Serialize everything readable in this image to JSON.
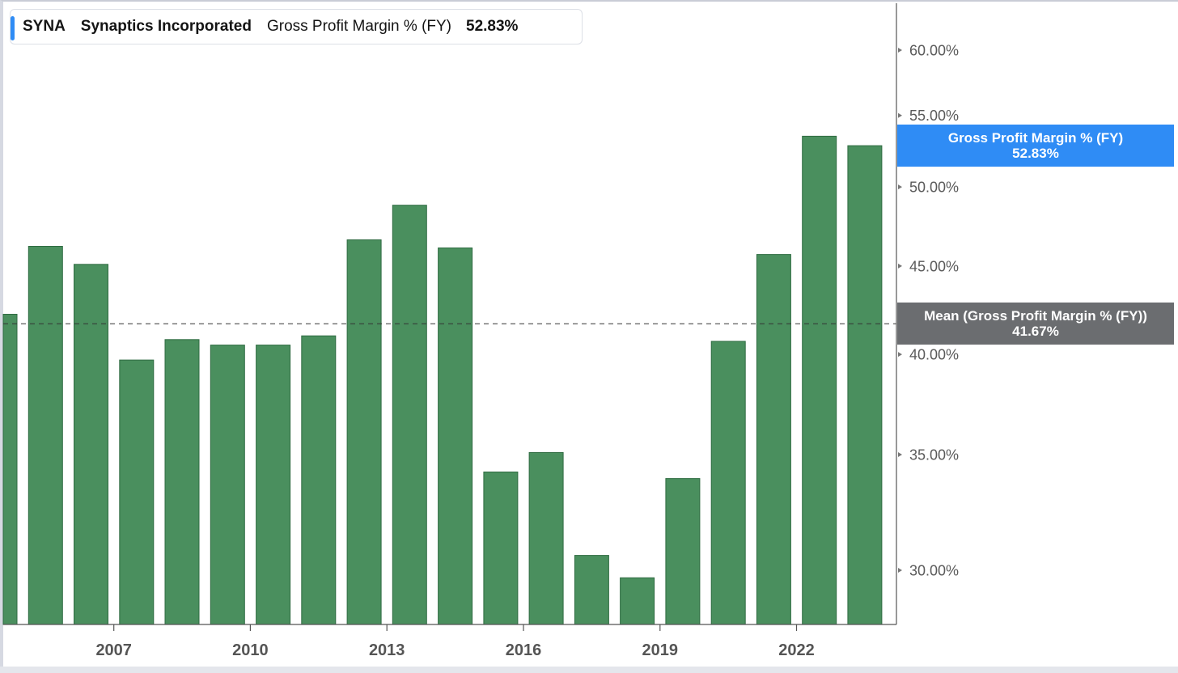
{
  "legend": {
    "ticker": "SYNA",
    "company": "Synaptics Incorporated",
    "metric": "Gross Profit Margin % (FY)",
    "value": "52.83%"
  },
  "callouts": {
    "value_label": "Gross Profit Margin % (FY)",
    "value_text": "52.83%",
    "mean_label": "Mean (Gross Profit Margin % (FY))",
    "mean_text": "41.67%"
  },
  "colors": {
    "bar": "#4a8f5e",
    "bar_edge": "#2f6b42",
    "accent": "#2f8cf5",
    "mean_box": "#6b6d70"
  },
  "chart_data": {
    "type": "bar",
    "title": "",
    "xlabel": "",
    "ylabel": "",
    "categories": [
      "2005",
      "2006",
      "2007",
      "2008",
      "2009",
      "2010",
      "2011",
      "2012",
      "2013",
      "2014",
      "2015",
      "2016",
      "2017",
      "2018",
      "2019",
      "2020",
      "2021",
      "2022",
      "2023",
      "2024"
    ],
    "series": [
      {
        "values": [
          42.2,
          46.2,
          45.1,
          39.7,
          40.8,
          40.5,
          40.5,
          41.0,
          46.6,
          48.8,
          46.1,
          34.2,
          35.1,
          30.6,
          29.7,
          33.9,
          40.7,
          45.7,
          53.5,
          52.83
        ]
      }
    ],
    "mean": 41.67,
    "ylim": [
      27.8,
      63.3
    ],
    "y_scale": "log",
    "y_ticks": [
      30,
      35,
      40,
      45,
      50,
      55,
      60
    ],
    "y_tick_labels": [
      "30.00%",
      "35.00%",
      "40.00%",
      "45.00%",
      "50.00%",
      "55.00%",
      "60.00%"
    ],
    "x_tick_labels": [
      "2007",
      "2010",
      "2013",
      "2016",
      "2019",
      "2022"
    ],
    "y_axis_position": "right",
    "grid": false,
    "legend_position": "top-left"
  }
}
